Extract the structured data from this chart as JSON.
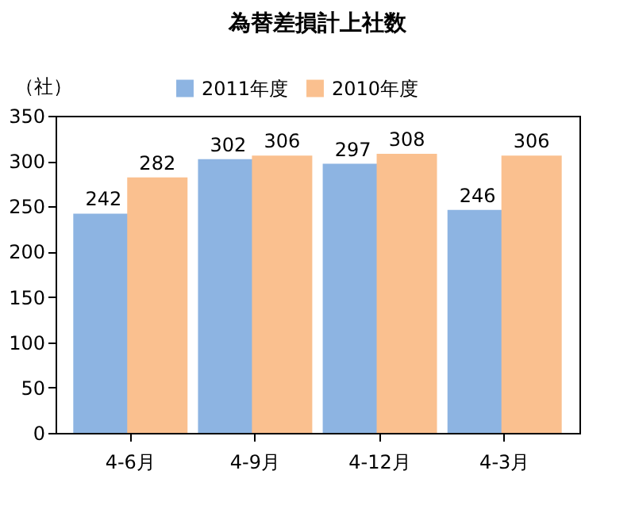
{
  "chart_data": {
    "type": "bar",
    "title": "為替差損計上社数",
    "ylabel": "（社）",
    "categories": [
      "4-6月",
      "4-9月",
      "4-12月",
      "4-3月"
    ],
    "series": [
      {
        "name": "2011年度",
        "color": "#8db4e2",
        "values": [
          242,
          302,
          297,
          246
        ]
      },
      {
        "name": "2010年度",
        "color": "#fac08f",
        "values": [
          282,
          306,
          308,
          306
        ]
      }
    ],
    "ylim": [
      0,
      350
    ],
    "yticks": [
      0,
      50,
      100,
      150,
      200,
      250,
      300,
      350
    ],
    "grid": false,
    "legend": "top",
    "data_labels": true
  }
}
